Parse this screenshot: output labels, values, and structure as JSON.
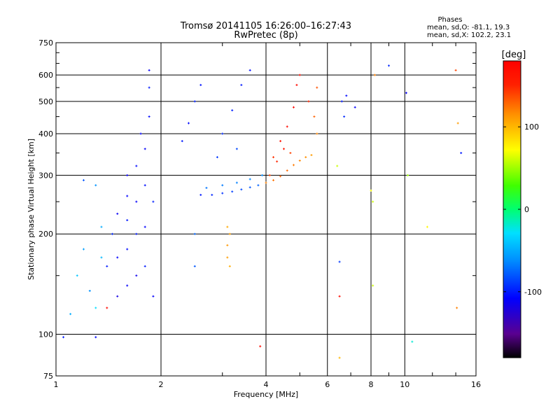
{
  "header": {
    "title_line1": "Tromsø 20141105 16:26:00–16:27:43",
    "title_line2": "RwPretec (8p)"
  },
  "stats": {
    "heading": "Phases",
    "line1": "mean, sd,O: -81.1, 19.3",
    "line2": "mean, sd,X: 102.2, 23.1"
  },
  "colorbar": {
    "label": "[deg]",
    "ticks": [
      "100",
      "0",
      "-100"
    ],
    "tick_values": [
      100,
      0,
      -100
    ],
    "range": [
      -180,
      180
    ]
  },
  "chart_data": {
    "type": "scatter",
    "xlabel": "Frequency [MHz]",
    "ylabel": "Stationary phase Virtual Height [km]",
    "x_scale": "log",
    "y_scale": "log",
    "xlim": [
      1,
      16
    ],
    "ylim": [
      75,
      750
    ],
    "x_ticks": [
      1,
      2,
      4,
      6,
      8,
      10,
      16
    ],
    "x_tick_labels": [
      "1",
      "2",
      "4",
      "6",
      "8",
      "10",
      "16"
    ],
    "y_ticks": [
      75,
      100,
      200,
      300,
      400,
      500,
      600,
      750
    ],
    "y_tick_labels": [
      "75",
      "100",
      "200",
      "300",
      "400",
      "500",
      "600",
      "750"
    ],
    "grid": true,
    "series": [
      {
        "points": [
          [
            1.6,
            140,
            -110
          ],
          [
            1.6,
            180,
            -105
          ],
          [
            1.6,
            220,
            -100
          ],
          [
            1.6,
            260,
            -108
          ],
          [
            1.6,
            300,
            -112
          ],
          [
            1.7,
            150,
            -115
          ],
          [
            1.7,
            200,
            -100
          ],
          [
            1.7,
            250,
            -110
          ],
          [
            1.7,
            320,
            -105
          ],
          [
            1.5,
            130,
            -118
          ],
          [
            1.5,
            170,
            -108
          ],
          [
            1.5,
            230,
            -112
          ],
          [
            1.8,
            160,
            -100
          ],
          [
            1.8,
            210,
            -108
          ],
          [
            1.8,
            280,
            -103
          ],
          [
            1.8,
            360,
            -110
          ],
          [
            1.85,
            450,
            -105
          ],
          [
            1.85,
            550,
            -100
          ],
          [
            1.85,
            620,
            -112
          ],
          [
            1.45,
            200,
            -95
          ],
          [
            1.4,
            160,
            -100
          ],
          [
            1.9,
            130,
            -110
          ],
          [
            1.9,
            250,
            -98
          ],
          [
            1.75,
            400,
            -108
          ]
        ]
      },
      {
        "points": [
          [
            2.6,
            262,
            -100
          ],
          [
            2.8,
            262,
            -96
          ],
          [
            3.0,
            265,
            -92
          ],
          [
            3.2,
            268,
            -88
          ],
          [
            3.4,
            272,
            -84
          ],
          [
            3.6,
            276,
            -80
          ],
          [
            3.8,
            280,
            -76
          ],
          [
            2.7,
            275,
            -70
          ],
          [
            3.0,
            280,
            -68
          ],
          [
            3.3,
            285,
            -66
          ],
          [
            3.6,
            292,
            -64
          ],
          [
            3.9,
            300,
            -62
          ],
          [
            2.3,
            380,
            -100
          ],
          [
            2.4,
            430,
            -105
          ],
          [
            2.5,
            500,
            -98
          ],
          [
            2.6,
            560,
            -102
          ],
          [
            3.0,
            400,
            -95
          ],
          [
            3.2,
            470,
            -98
          ],
          [
            3.4,
            560,
            -100
          ],
          [
            3.6,
            620,
            -104
          ],
          [
            2.9,
            340,
            -90
          ],
          [
            3.3,
            360,
            -85
          ],
          [
            2.5,
            200,
            -75
          ],
          [
            2.5,
            160,
            -80
          ]
        ]
      },
      {
        "points": [
          [
            3.1,
            170,
            110
          ],
          [
            3.1,
            185,
            112
          ],
          [
            3.15,
            200,
            108
          ],
          [
            3.1,
            210,
            106
          ],
          [
            3.15,
            160,
            104
          ]
        ]
      },
      {
        "points": [
          [
            4.0,
            285,
            120
          ],
          [
            4.2,
            290,
            125
          ],
          [
            4.4,
            298,
            130
          ],
          [
            4.6,
            310,
            128
          ],
          [
            4.8,
            322,
            122
          ],
          [
            5.0,
            332,
            118
          ],
          [
            5.2,
            340,
            115
          ],
          [
            5.4,
            345,
            110
          ],
          [
            4.1,
            300,
            140
          ],
          [
            4.3,
            330,
            150
          ],
          [
            4.5,
            360,
            160
          ],
          [
            4.6,
            420,
            170
          ],
          [
            4.8,
            480,
            175
          ],
          [
            4.9,
            560,
            172
          ],
          [
            5.0,
            600,
            168
          ],
          [
            4.4,
            380,
            165
          ],
          [
            4.2,
            340,
            145
          ],
          [
            5.3,
            500,
            150
          ],
          [
            5.5,
            450,
            130
          ],
          [
            5.6,
            400,
            118
          ],
          [
            5.6,
            550,
            135
          ],
          [
            4.7,
            350,
            140
          ]
        ]
      },
      {
        "points": [
          [
            6.4,
            320,
            60
          ],
          [
            6.5,
            165,
            -90
          ],
          [
            6.5,
            130,
            170
          ],
          [
            6.6,
            500,
            -100
          ],
          [
            6.7,
            450,
            -95
          ],
          [
            6.8,
            520,
            -105
          ],
          [
            7.2,
            480,
            -110
          ],
          [
            8.0,
            270,
            70
          ],
          [
            8.1,
            250,
            60
          ],
          [
            8.2,
            600,
            120
          ],
          [
            8.1,
            140,
            60
          ],
          [
            10.1,
            530,
            -110
          ],
          [
            10.2,
            300,
            50
          ],
          [
            10.5,
            95,
            -20
          ],
          [
            11.6,
            210,
            75
          ],
          [
            14.0,
            620,
            140
          ],
          [
            14.2,
            430,
            110
          ],
          [
            14.1,
            120,
            120
          ],
          [
            14.5,
            350,
            -100
          ],
          [
            3.85,
            92,
            170
          ],
          [
            6.5,
            85,
            100
          ],
          [
            9.0,
            640,
            -95
          ]
        ]
      },
      {
        "points": [
          [
            1.05,
            98,
            -100
          ],
          [
            1.1,
            115,
            -50
          ],
          [
            1.15,
            150,
            -40
          ],
          [
            1.2,
            180,
            -55
          ],
          [
            1.25,
            135,
            -60
          ],
          [
            1.3,
            98,
            -105
          ],
          [
            1.3,
            120,
            -30
          ],
          [
            1.35,
            170,
            -45
          ],
          [
            1.4,
            120,
            170
          ],
          [
            1.2,
            290,
            -80
          ],
          [
            1.3,
            280,
            -60
          ],
          [
            1.35,
            210,
            -50
          ]
        ]
      }
    ]
  }
}
